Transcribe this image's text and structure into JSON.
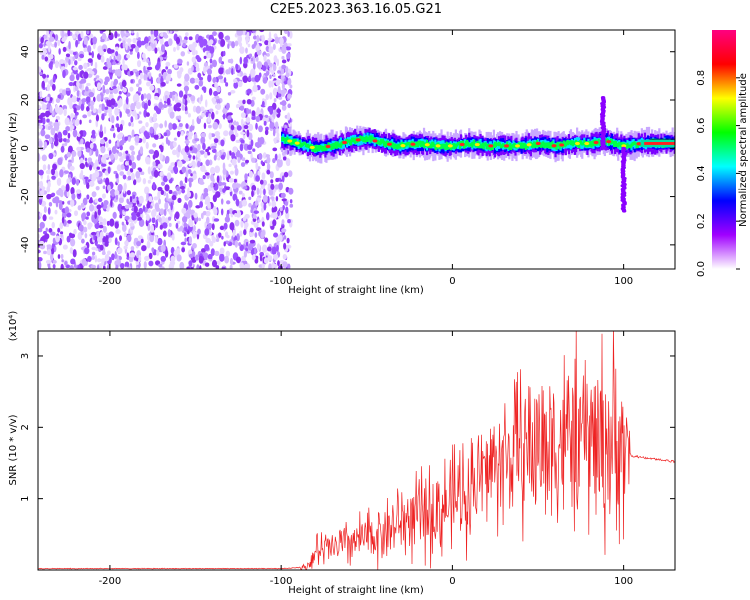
{
  "page": {
    "title": "C2E5.2023.363.16.05.G21"
  },
  "chart_data": [
    {
      "type": "heatmap",
      "xlabel": "Height of straight line (km)",
      "ylabel": "Frequency (Hz)",
      "xlim": [
        -242,
        130
      ],
      "ylim": [
        -50,
        49
      ],
      "x_ticks": [
        -200,
        -100,
        0,
        100
      ],
      "y_ticks": [
        -40,
        -20,
        0,
        20,
        40
      ],
      "colorbar": {
        "label": "Normalized spectral amplitude",
        "range": [
          0,
          1
        ],
        "ticks": [
          "0.0",
          "0.2",
          "0.4",
          "0.6",
          "0.8"
        ],
        "colormap": [
          "#ffffff",
          "#a000ff",
          "#0000ff",
          "#00ffff",
          "#00ff00",
          "#ffff00",
          "#ff0000",
          "#ff0080"
        ]
      },
      "noise_region_x": [
        -242,
        -100
      ],
      "signal_trace": {
        "x": [
          -100,
          -90,
          -80,
          -70,
          -60,
          -50,
          -40,
          -30,
          -20,
          -10,
          0,
          10,
          20,
          30,
          40,
          50,
          60,
          70,
          80,
          90,
          100,
          110,
          120,
          130
        ],
        "freq": [
          4,
          2,
          0,
          1,
          3,
          4,
          2,
          1,
          2,
          1,
          1,
          2,
          1,
          1,
          1,
          2,
          1,
          2,
          2,
          3,
          1,
          2,
          2,
          2
        ]
      },
      "spikes": [
        {
          "x": 88,
          "freq_range": [
            0,
            21
          ]
        },
        {
          "x": 100,
          "freq_range": [
            -26,
            0
          ]
        }
      ]
    },
    {
      "type": "line",
      "xlabel": "Height of straight line (km)",
      "ylabel": "SNR (10 * v/v)",
      "multiplier": "(x10⁴)",
      "xlim": [
        -242,
        130
      ],
      "ylim": [
        0,
        3.35
      ],
      "x_ticks": [
        -200,
        -100,
        0,
        100
      ],
      "y_ticks": [
        1,
        2,
        3
      ],
      "color": "#ee2222",
      "series": [
        {
          "x": [
            -242,
            -100,
            -85,
            -80,
            -70,
            -60,
            -50,
            -40,
            -30,
            -20,
            -10,
            0,
            10,
            20,
            30,
            40,
            50,
            60,
            70,
            80,
            90,
            100,
            105,
            110,
            120,
            130
          ],
          "values": [
            0.02,
            0.02,
            0.04,
            0.25,
            0.3,
            0.38,
            0.45,
            0.55,
            0.68,
            0.75,
            0.82,
            0.95,
            1.15,
            1.4,
            1.55,
            1.7,
            1.75,
            1.8,
            1.85,
            1.85,
            1.82,
            1.7,
            1.6,
            1.58,
            1.55,
            1.52
          ],
          "amplitude": [
            0,
            0,
            0.05,
            0.25,
            0.3,
            0.35,
            0.4,
            0.45,
            0.55,
            0.6,
            0.7,
            0.75,
            0.8,
            0.85,
            1.0,
            1.1,
            1.2,
            1.25,
            1.3,
            1.35,
            1.5,
            1.3,
            0.02,
            0.02,
            0.02,
            0.02
          ]
        }
      ]
    }
  ]
}
